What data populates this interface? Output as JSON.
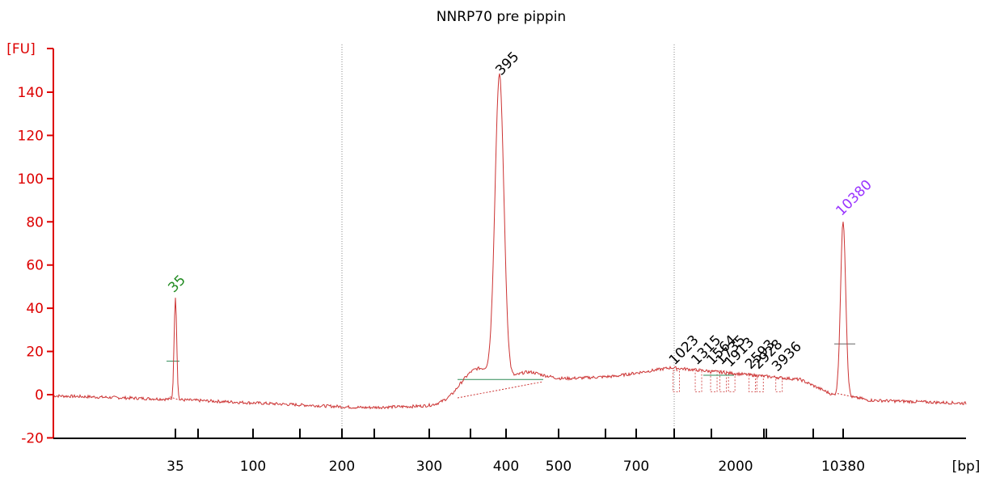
{
  "chart_data": {
    "type": "line",
    "title": "NNRP70 pre pippin",
    "ylabel": "[FU]",
    "xlabel": "[bp]",
    "ylim": [
      -20,
      150
    ],
    "yticks": [
      -20,
      0,
      20,
      40,
      60,
      80,
      100,
      120,
      140
    ],
    "x_scale": "categorical-nonlinear (electropherogram size ladder)",
    "x_tick_labels": [
      "35",
      "",
      "100",
      "",
      "200",
      "",
      "300",
      "",
      "400",
      "500",
      "",
      "700",
      "",
      "",
      "",
      "2000",
      "",
      "",
      "10380"
    ],
    "gridlines_at": [
      "200",
      "1000"
    ],
    "colors": {
      "axis": "#dd0000",
      "trace": "#cc3333",
      "baseline": "#2e8b57",
      "lower_marker": "#228b22",
      "upper_marker": "#9933ff",
      "peak_label": "#000000"
    },
    "trace_points": [
      [
        35,
        -2.5
      ],
      [
        35,
        45.5
      ],
      [
        35,
        -2
      ],
      [
        395,
        146
      ],
      [
        10380,
        81
      ]
    ],
    "peaks": [
      {
        "label": "35",
        "size_bp": 35,
        "height_fu": 45.5,
        "role": "lower marker"
      },
      {
        "label": "395",
        "size_bp": 395,
        "height_fu": 146,
        "role": "sample"
      },
      {
        "label": "1023",
        "size_bp": 1023,
        "height_fu": 12,
        "role": "sample"
      },
      {
        "label": "1315",
        "size_bp": 1315,
        "height_fu": 12,
        "role": "sample"
      },
      {
        "label": "1564",
        "size_bp": 1564,
        "height_fu": 12,
        "role": "sample"
      },
      {
        "label": "1735",
        "size_bp": 1735,
        "height_fu": 12,
        "role": "sample"
      },
      {
        "label": "1913",
        "size_bp": 1913,
        "height_fu": 11,
        "role": "sample"
      },
      {
        "label": "2593",
        "size_bp": 2593,
        "height_fu": 10,
        "role": "sample"
      },
      {
        "label": "2928",
        "size_bp": 2928,
        "height_fu": 10,
        "role": "sample"
      },
      {
        "label": "3936",
        "size_bp": 3936,
        "height_fu": 9,
        "role": "sample"
      },
      {
        "label": "10380",
        "size_bp": 10380,
        "height_fu": 81,
        "role": "upper marker"
      }
    ]
  }
}
